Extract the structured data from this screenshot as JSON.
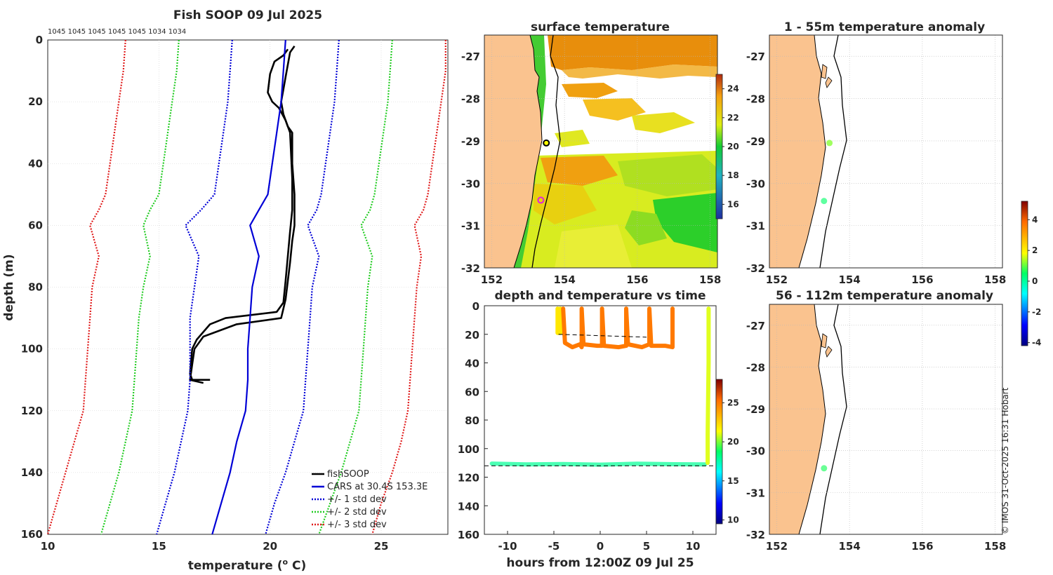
{
  "chart_data": [
    {
      "type": "line",
      "title": "Fish SOOP 09 Jul 2025",
      "xlabel": "temperature (",
      "xlabel_sup": "o",
      "xlabel_unit": " C)",
      "ylabel": "depth (m)",
      "xlim": [
        10,
        28
      ],
      "ylim": [
        0,
        160
      ],
      "xticks": [
        10,
        15,
        20,
        25
      ],
      "yticks": [
        0,
        20,
        40,
        60,
        80,
        100,
        120,
        140,
        160
      ],
      "top_annotation": "1045 1045 1045 1045 1045 1034 1034",
      "grid": true,
      "legend_position": "bottom-right",
      "legend": [
        "fishSOOP",
        "CARS at 30.4S 153.3E",
        "+/- 1 std dev",
        "+/- 2 std dev",
        "+/- 3 std dev"
      ],
      "series": [
        {
          "name": "fishSOOP",
          "color": "#000000",
          "points": [
            [
              21.1,
              2
            ],
            [
              20.9,
              4
            ],
            [
              20.8,
              8
            ],
            [
              20.7,
              12
            ],
            [
              20.6,
              16
            ],
            [
              20.5,
              20
            ],
            [
              20.6,
              24
            ],
            [
              20.8,
              28
            ],
            [
              21.0,
              30
            ],
            [
              21.0,
              40
            ],
            [
              21.1,
              50
            ],
            [
              21.1,
              60
            ],
            [
              21.0,
              65
            ],
            [
              20.9,
              72
            ],
            [
              20.8,
              78
            ],
            [
              20.7,
              84
            ],
            [
              20.5,
              90
            ],
            [
              18.5,
              92
            ],
            [
              17.0,
              96
            ],
            [
              16.6,
              100
            ],
            [
              16.5,
              105
            ],
            [
              16.4,
              110
            ],
            [
              17.0,
              111
            ]
          ]
        },
        {
          "name": "fishSOOP",
          "color": "#000000",
          "points": [
            [
              20.8,
              3
            ],
            [
              20.6,
              5
            ],
            [
              20.2,
              7
            ],
            [
              20.0,
              11
            ],
            [
              19.9,
              17
            ],
            [
              20.1,
              20
            ],
            [
              20.4,
              22
            ],
            [
              20.7,
              26
            ],
            [
              20.9,
              30
            ],
            [
              21.0,
              45
            ],
            [
              21.0,
              55
            ],
            [
              20.9,
              62
            ],
            [
              20.8,
              70
            ],
            [
              20.7,
              78
            ],
            [
              20.6,
              85
            ],
            [
              20.3,
              88
            ],
            [
              18.0,
              90
            ],
            [
              17.3,
              92
            ],
            [
              16.7,
              97
            ],
            [
              16.5,
              100
            ],
            [
              16.4,
              108
            ],
            [
              16.5,
              110
            ],
            [
              17.3,
              110
            ]
          ]
        },
        {
          "name": "CARS at 30.4S 153.3E",
          "color": "#0000d6",
          "points": [
            [
              20.7,
              0
            ],
            [
              20.6,
              10
            ],
            [
              20.5,
              20
            ],
            [
              20.3,
              30
            ],
            [
              20.1,
              40
            ],
            [
              19.9,
              50
            ],
            [
              19.5,
              55
            ],
            [
              19.1,
              60
            ],
            [
              19.5,
              70
            ],
            [
              19.2,
              80
            ],
            [
              19.1,
              90
            ],
            [
              19.0,
              100
            ],
            [
              19.0,
              110
            ],
            [
              18.9,
              120
            ],
            [
              18.5,
              130
            ],
            [
              18.2,
              140
            ],
            [
              17.8,
              150
            ],
            [
              17.4,
              160
            ]
          ]
        },
        {
          "name": "+/- 1 std dev",
          "color": "#0000d6",
          "dash": true,
          "points": [
            [
              18.3,
              0
            ],
            [
              18.2,
              10
            ],
            [
              18.1,
              20
            ],
            [
              17.9,
              30
            ],
            [
              17.7,
              40
            ],
            [
              17.5,
              50
            ],
            [
              16.9,
              55
            ],
            [
              16.2,
              60
            ],
            [
              16.8,
              70
            ],
            [
              16.6,
              80
            ],
            [
              16.4,
              90
            ],
            [
              16.4,
              100
            ],
            [
              16.4,
              110
            ],
            [
              16.3,
              120
            ],
            [
              16.0,
              130
            ],
            [
              15.7,
              140
            ],
            [
              15.3,
              150
            ],
            [
              14.9,
              160
            ]
          ]
        },
        {
          "name": "+/- 1 std dev",
          "color": "#0000d6",
          "dash": true,
          "points": [
            [
              23.1,
              0
            ],
            [
              23.0,
              10
            ],
            [
              22.9,
              20
            ],
            [
              22.7,
              30
            ],
            [
              22.5,
              40
            ],
            [
              22.3,
              50
            ],
            [
              22.1,
              55
            ],
            [
              21.7,
              60
            ],
            [
              22.2,
              70
            ],
            [
              21.9,
              80
            ],
            [
              21.8,
              90
            ],
            [
              21.7,
              100
            ],
            [
              21.6,
              110
            ],
            [
              21.5,
              120
            ],
            [
              21.1,
              130
            ],
            [
              20.7,
              140
            ],
            [
              20.2,
              150
            ],
            [
              19.8,
              160
            ]
          ]
        },
        {
          "name": "+/- 2 std dev",
          "color": "#22cc22",
          "dash": true,
          "points": [
            [
              15.9,
              0
            ],
            [
              15.8,
              10
            ],
            [
              15.6,
              20
            ],
            [
              15.4,
              30
            ],
            [
              15.2,
              40
            ],
            [
              15.0,
              50
            ],
            [
              14.6,
              55
            ],
            [
              14.3,
              60
            ],
            [
              14.6,
              70
            ],
            [
              14.3,
              80
            ],
            [
              14.1,
              90
            ],
            [
              14.0,
              100
            ],
            [
              13.9,
              110
            ],
            [
              13.8,
              120
            ],
            [
              13.5,
              130
            ],
            [
              13.2,
              140
            ],
            [
              12.8,
              150
            ],
            [
              12.4,
              160
            ]
          ]
        },
        {
          "name": "+/- 2 std dev",
          "color": "#22cc22",
          "dash": true,
          "points": [
            [
              25.5,
              0
            ],
            [
              25.4,
              10
            ],
            [
              25.3,
              20
            ],
            [
              25.1,
              30
            ],
            [
              24.9,
              40
            ],
            [
              24.7,
              50
            ],
            [
              24.5,
              55
            ],
            [
              24.1,
              60
            ],
            [
              24.6,
              70
            ],
            [
              24.4,
              80
            ],
            [
              24.3,
              90
            ],
            [
              24.2,
              100
            ],
            [
              24.1,
              110
            ],
            [
              24.0,
              120
            ],
            [
              23.6,
              130
            ],
            [
              23.2,
              140
            ],
            [
              22.7,
              150
            ],
            [
              22.2,
              160
            ]
          ]
        },
        {
          "name": "+/- 3 std dev",
          "color": "#e01c1c",
          "dash": true,
          "points": [
            [
              13.5,
              0
            ],
            [
              13.4,
              10
            ],
            [
              13.2,
              20
            ],
            [
              13.0,
              30
            ],
            [
              12.8,
              40
            ],
            [
              12.6,
              50
            ],
            [
              12.3,
              55
            ],
            [
              11.9,
              60
            ],
            [
              12.3,
              70
            ],
            [
              12.0,
              80
            ],
            [
              11.9,
              90
            ],
            [
              11.8,
              100
            ],
            [
              11.7,
              110
            ],
            [
              11.6,
              120
            ],
            [
              11.2,
              130
            ],
            [
              10.8,
              140
            ],
            [
              10.4,
              150
            ],
            [
              10.0,
              160
            ]
          ]
        },
        {
          "name": "+/- 3 std dev",
          "color": "#e01c1c",
          "dash": true,
          "points": [
            [
              27.9,
              0
            ],
            [
              27.9,
              10
            ],
            [
              27.7,
              20
            ],
            [
              27.5,
              30
            ],
            [
              27.3,
              40
            ],
            [
              27.1,
              50
            ],
            [
              26.9,
              55
            ],
            [
              26.5,
              60
            ],
            [
              26.8,
              70
            ],
            [
              26.6,
              80
            ],
            [
              26.5,
              90
            ],
            [
              26.4,
              100
            ],
            [
              26.3,
              110
            ],
            [
              26.2,
              120
            ],
            [
              25.9,
              130
            ],
            [
              25.5,
              140
            ],
            [
              25.0,
              150
            ],
            [
              24.6,
              160
            ]
          ]
        }
      ]
    },
    {
      "type": "heatmap",
      "title": "surface temperature",
      "xlim": [
        151.8,
        158.2
      ],
      "ylim": [
        -32,
        -26.5
      ],
      "xticks": [
        152,
        154,
        156,
        158
      ],
      "yticks": [
        -27,
        -28,
        -29,
        -30,
        -31,
        -32
      ],
      "colorbar": {
        "min": 15,
        "max": 25,
        "ticks": [
          16,
          18,
          20,
          22,
          24
        ]
      },
      "markers": [
        {
          "lon": 153.5,
          "lat": -29.05,
          "color": "#ffff00",
          "edge": "#000000"
        },
        {
          "lon": 153.35,
          "lat": -30.4,
          "color": "none",
          "edge": "#e020e0"
        }
      ]
    },
    {
      "type": "map",
      "title": "1 - 55m temperature anomaly",
      "xlim": [
        151.8,
        158.2
      ],
      "ylim": [
        -32,
        -26.5
      ],
      "xticks": [
        152,
        154,
        156,
        158
      ],
      "yticks": [
        -27,
        -28,
        -29,
        -30,
        -31,
        -32
      ],
      "points": [
        {
          "lon": 153.45,
          "lat": -29.05,
          "value": 0.8
        },
        {
          "lon": 153.3,
          "lat": -30.42,
          "value": 0.2
        }
      ]
    },
    {
      "type": "map",
      "title": "56 - 112m temperature anomaly",
      "xlim": [
        151.8,
        158.2
      ],
      "ylim": [
        -32,
        -26.5
      ],
      "xticks": [
        152,
        154,
        156,
        158
      ],
      "yticks": [
        -27,
        -28,
        -29,
        -30,
        -31,
        -32
      ],
      "points": [
        {
          "lon": 153.3,
          "lat": -30.42,
          "value": 0.3
        }
      ]
    },
    {
      "type": "scatter",
      "title": "depth and temperature vs time",
      "xlabel": "hours from 12:00Z 09 Jul 25",
      "xlim": [
        -12.5,
        12.5
      ],
      "ylim": [
        0,
        160
      ],
      "xticks": [
        -10,
        -5,
        0,
        5,
        10
      ],
      "yticks": [
        0,
        20,
        40,
        60,
        80,
        100,
        120,
        140,
        160
      ],
      "colorbar": {
        "min": 9.5,
        "max": 28,
        "ticks": [
          10,
          15,
          20,
          25
        ]
      },
      "ref_lines": [
        {
          "x": [
            -4.5,
            5
          ],
          "y": [
            20,
            22
          ]
        },
        {
          "x": [
            -12.5,
            12.5
          ],
          "y": [
            112,
            112
          ]
        }
      ],
      "segments": [
        {
          "x": [
            -11.7,
            -8,
            -4,
            0,
            4,
            8,
            11.3
          ],
          "y": [
            110.5,
            111,
            110.8,
            111.2,
            110.6,
            110.9,
            111
          ],
          "temp": 17.8
        },
        {
          "x": [
            -4.6,
            -4.6,
            -4.3,
            -4.3
          ],
          "y": [
            2,
            19,
            19,
            2
          ],
          "temp": 21.5
        },
        {
          "x": [
            -4.0,
            -3.8,
            -3,
            -2.2,
            -2.0,
            -2.0,
            -1.8,
            -0.3,
            0.2,
            0.2,
            0.4,
            2,
            2.8,
            2.8,
            3.0,
            4.5,
            5.3,
            5.3,
            5.5,
            7,
            7.8,
            7.8
          ],
          "y": [
            2,
            26,
            29,
            27,
            29,
            2,
            27,
            28,
            28,
            2,
            28,
            29,
            28,
            2,
            27,
            29,
            27,
            2,
            28,
            28,
            29,
            2
          ],
          "temp": 23.5
        },
        {
          "x": [
            11.6,
            11.6,
            11.7,
            11.7
          ],
          "y": [
            110,
            90,
            40,
            2
          ],
          "temp": 20.5
        }
      ],
      "copyright": "© IMOS 31-Oct-2025 16:31 Hobart"
    }
  ],
  "anomaly_colorbar": {
    "min": -4.2,
    "max": 5.2,
    "ticks": [
      4,
      2,
      0,
      -2,
      -4
    ]
  }
}
